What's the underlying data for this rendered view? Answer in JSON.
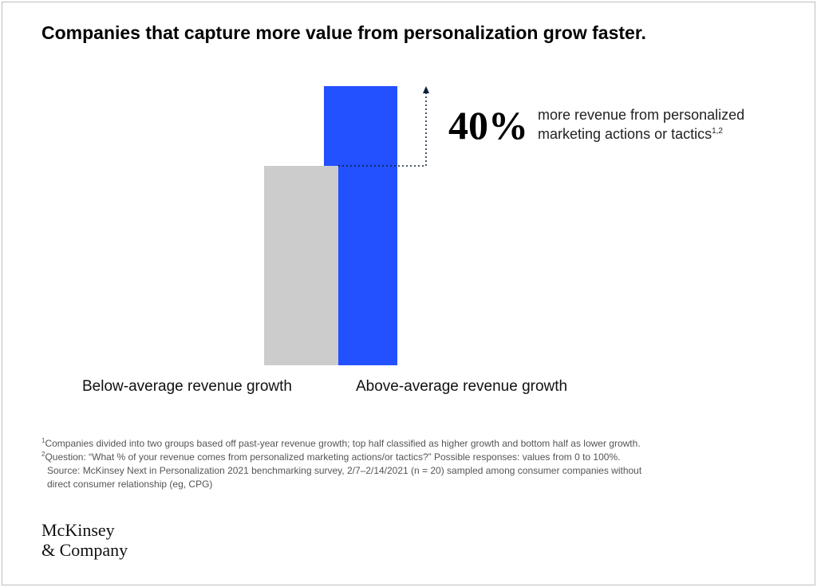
{
  "title": "Companies that capture more value from personalization grow faster.",
  "chart_data": {
    "type": "bar",
    "categories": [
      "Below-average revenue growth",
      "Above-average revenue growth"
    ],
    "values": [
      100,
      140
    ],
    "ylim": [
      0,
      140
    ],
    "grid": false,
    "colors": [
      "#cccccc",
      "#2451ff"
    ],
    "annotation": {
      "value": "40%",
      "text": "more revenue from personalized marketing actions or tactics",
      "superscript": "1,2",
      "arrow_color": "#0b1f3a"
    }
  },
  "footnotes": [
    {
      "marker": "1",
      "text": "Companies divided into two groups based off past-year revenue growth; top half classified as higher growth and bottom half as lower growth."
    },
    {
      "marker": "2",
      "text": "Question: “What % of your revenue comes from personalized marketing actions/or tactics?” Possible responses: values from 0 to 100%."
    },
    {
      "marker": "",
      "text": "Source: McKinsey Next in Personalization 2021 benchmarking survey, 2/7–2/14/2021 (n = 20) sampled among consumer companies without"
    },
    {
      "marker": "",
      "text": "direct consumer relationship (eg, CPG)"
    }
  ],
  "logo": {
    "line1": "McKinsey",
    "line2": "& Company"
  }
}
